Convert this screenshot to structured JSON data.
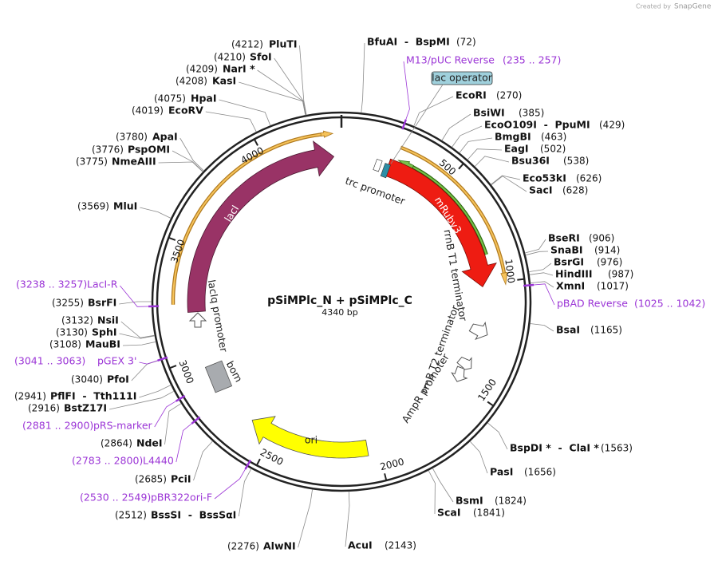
{
  "header": {
    "credit": "Created by",
    "brand": "SnapGene"
  },
  "map": {
    "name": "pSiMPlc_N + pSiMPlc_C",
    "length": "4340 bp"
  },
  "ticks": [
    "500",
    "1000",
    "1500",
    "2000",
    "2500",
    "3000",
    "3500",
    "4000"
  ],
  "sites": [
    {
      "name": "BfuAI  -  BspMI",
      "position": "(72)"
    },
    {
      "name": "EcoRI",
      "position": "(270)"
    },
    {
      "name": "BsiWI",
      "position": "(385)"
    },
    {
      "name": "EcoO109I  -  PpuMI",
      "position": "(429)"
    },
    {
      "name": "BmgBI",
      "position": "(463)"
    },
    {
      "name": "EagI",
      "position": "(502)"
    },
    {
      "name": "Bsu36I",
      "position": "(538)"
    },
    {
      "name": "Eco53kI",
      "position": "(626)"
    },
    {
      "name": "SacI",
      "position": "(628)"
    },
    {
      "name": "BseRI",
      "position": "(906)"
    },
    {
      "name": "SnaBI",
      "position": "(914)"
    },
    {
      "name": "BsrGI",
      "position": "(976)"
    },
    {
      "name": "HindIII",
      "position": "(987)"
    },
    {
      "name": "XmnI",
      "position": "(1017)"
    },
    {
      "name": "BsaI",
      "position": "(1165)"
    },
    {
      "name": "BspDI *  -  ClaI *",
      "position": "(1563)"
    },
    {
      "name": "PasI",
      "position": "(1656)"
    },
    {
      "name": "BsmI",
      "position": "(1824)"
    },
    {
      "name": "ScaI",
      "position": "(1841)"
    },
    {
      "name": "AcuI",
      "position": "(2143)"
    },
    {
      "name": "PluTI",
      "position": "(4212)"
    },
    {
      "name": "SfoI",
      "position": "(4210)"
    },
    {
      "name": "NarI *",
      "position": "(4209)"
    },
    {
      "name": "KasI",
      "position": "(4208)"
    },
    {
      "name": "HpaI",
      "position": "(4075)"
    },
    {
      "name": "EcoRV",
      "position": "(4019)"
    },
    {
      "name": "ApaI",
      "position": "(3780)"
    },
    {
      "name": "PspOMI",
      "position": "(3776)"
    },
    {
      "name": "NmeAIII",
      "position": "(3775)"
    },
    {
      "name": "MluI",
      "position": "(3569)"
    },
    {
      "name": "BsrFI",
      "position": "(3255)"
    },
    {
      "name": "NsiI",
      "position": "(3132)"
    },
    {
      "name": "SphI",
      "position": "(3130)"
    },
    {
      "name": "MauBI",
      "position": "(3108)"
    },
    {
      "name": "PfoI",
      "position": "(3040)"
    },
    {
      "name": "PflFI  -  Tth111I",
      "position": "(2941)"
    },
    {
      "name": "BstZ17I",
      "position": "(2916)"
    },
    {
      "name": "NdeI",
      "position": "(2864)"
    },
    {
      "name": "PciI",
      "position": "(2685)"
    },
    {
      "name": "BssSI  -  BssSαI",
      "position": "(2512)"
    },
    {
      "name": "AlwNI",
      "position": "(2276)"
    }
  ],
  "primers": [
    {
      "name": "M13/pUC Reverse",
      "range": "(235 .. 257)"
    },
    {
      "name": "pBAD Reverse",
      "range": "(1025 .. 1042)"
    },
    {
      "name": "LacI-R",
      "range": "(3238 .. 3257)"
    },
    {
      "name": "pGEX 3'",
      "range": "(3041 .. 3063)"
    },
    {
      "name": "pRS-marker",
      "range": "(2881 .. 2900)"
    },
    {
      "name": "L4440",
      "range": "(2783 .. 2800)"
    },
    {
      "name": "pBR322ori-F",
      "range": "(2530 .. 2549)"
    }
  ],
  "features": [
    {
      "label": "lac operator"
    },
    {
      "label": "trc promoter"
    },
    {
      "label": "mRuby3"
    },
    {
      "label": "rrnB T1 terminator"
    },
    {
      "label": "rrnB T2 terminator"
    },
    {
      "label": "AmpR promoter"
    },
    {
      "label": "ori"
    },
    {
      "label": "bom"
    },
    {
      "label": "lacIq promoter"
    },
    {
      "label": "lacI"
    }
  ]
}
